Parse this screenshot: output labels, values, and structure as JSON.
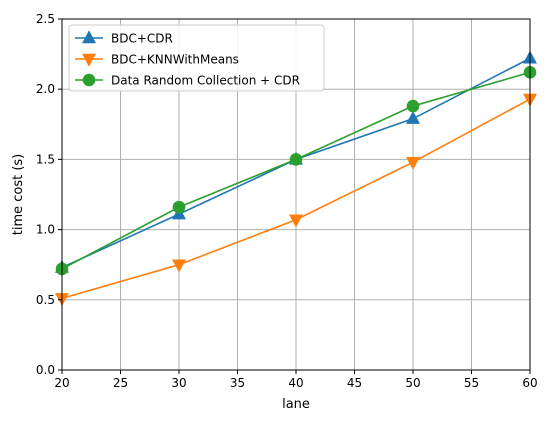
{
  "chart_data": {
    "type": "line",
    "xlabel": "lane",
    "ylabel": "time cost (s)",
    "x": [
      20,
      30,
      40,
      50,
      60
    ],
    "xlim": [
      20,
      60
    ],
    "ylim": [
      0.0,
      2.5
    ],
    "xticks": [
      "20",
      "25",
      "30",
      "35",
      "40",
      "45",
      "50",
      "55",
      "60"
    ],
    "yticks": [
      "0.0",
      "0.5",
      "1.0",
      "1.5",
      "2.0",
      "2.5"
    ],
    "grid": true,
    "legend_position": "top-left",
    "series": [
      {
        "name": "BDC+CDR",
        "values": [
          0.73,
          1.11,
          1.5,
          1.79,
          2.22
        ],
        "color": "#1f77b4",
        "marker": "triangle-up"
      },
      {
        "name": "BDC+KNNWithMeans",
        "values": [
          0.51,
          0.75,
          1.07,
          1.48,
          1.93
        ],
        "color": "#ff7f0e",
        "marker": "triangle-down"
      },
      {
        "name": "Data Random Collection + CDR",
        "values": [
          0.72,
          1.16,
          1.5,
          1.88,
          2.12
        ],
        "color": "#2ca02c",
        "marker": "circle"
      }
    ]
  }
}
